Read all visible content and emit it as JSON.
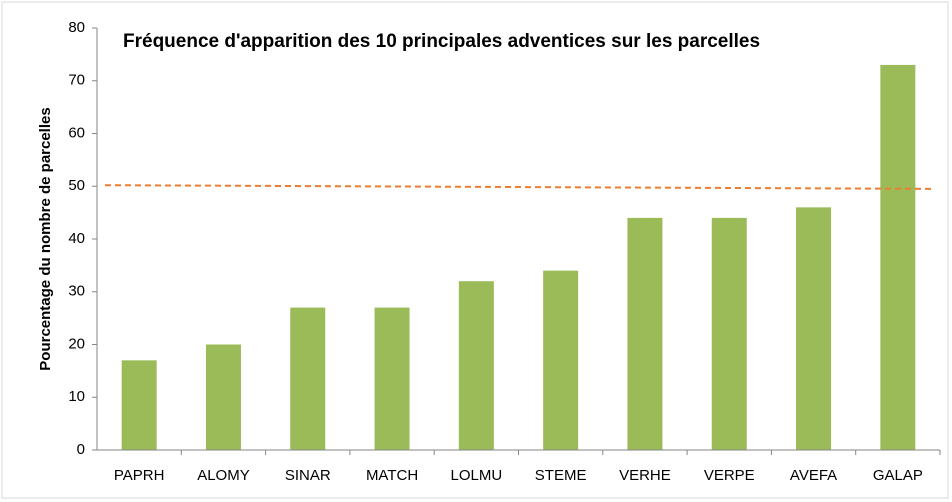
{
  "chart_data": {
    "type": "bar",
    "title": "Fréquence d'apparition des 10 principales adventices sur les parcelles",
    "y_label": "Pourcentage du nombre de parcelles",
    "categories": [
      "PAPRH",
      "ALOMY",
      "SINAR",
      "MATCH",
      "LOLMU",
      "STEME",
      "VERHE",
      "VERPE",
      "AVEFA",
      "GALAP"
    ],
    "values": [
      17,
      20,
      27,
      27,
      32,
      34,
      44,
      44,
      46,
      73
    ],
    "color": "#9bbb59",
    "ylim": [
      0,
      80
    ],
    "yticks": [
      0,
      10,
      20,
      30,
      40,
      50,
      60,
      70,
      80
    ],
    "grid": false,
    "reference_line": {
      "values": [
        50.2,
        49.5
      ],
      "color": "#ed7d31"
    }
  }
}
